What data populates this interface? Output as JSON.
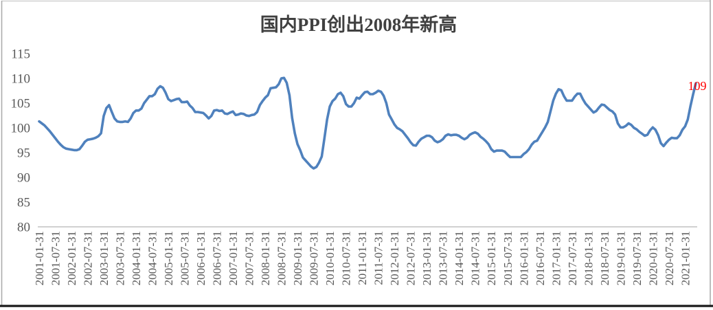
{
  "title": {
    "text": "国内PPI创出2008年新高"
  },
  "colors": {
    "series_line": "#4F81BD",
    "data_label": "#FF0000",
    "axis_line": "#C0C0C0",
    "tick_label": "#595959",
    "title_text": "#404040",
    "frame_border": "#ABABAB",
    "window_bottom_edge": "#1A1A1A",
    "background": "#FFFFFF"
  },
  "chart_data": {
    "type": "line",
    "title": "国内PPI创出2008年新高",
    "xlabel": "",
    "ylabel": "",
    "x_start": "2001-01",
    "x_end": "2021-05",
    "x_freq": "monthly",
    "ylim": [
      80,
      115
    ],
    "y_ticks": [
      80,
      85,
      90,
      95,
      100,
      105,
      110,
      115
    ],
    "grid": false,
    "legend": "none",
    "x_tick_labels": [
      "2001-01-31",
      "2001-07-31",
      "2002-01-31",
      "2002-07-31",
      "2003-01-31",
      "2003-07-31",
      "2004-01-31",
      "2004-07-31",
      "2005-01-31",
      "2005-07-31",
      "2006-01-31",
      "2006-07-31",
      "2007-01-31",
      "2007-07-31",
      "2008-01-31",
      "2008-07-31",
      "2009-01-31",
      "2009-07-31",
      "2010-01-31",
      "2010-07-31",
      "2011-01-31",
      "2011-07-31",
      "2012-01-31",
      "2012-07-31",
      "2013-01-31",
      "2013-07-31",
      "2014-01-31",
      "2014-07-31",
      "2015-01-31",
      "2015-07-31",
      "2016-01-31",
      "2016-07-31",
      "2017-01-31",
      "2017-07-31",
      "2018-01-31",
      "2018-07-31",
      "2019-01-31",
      "2019-07-31",
      "2020-01-31",
      "2020-07-31",
      "2021-01-31"
    ],
    "x_tick_every_n_months": 6,
    "values": [
      101.3,
      100.9,
      100.5,
      99.9,
      99.3,
      98.6,
      97.9,
      97.2,
      96.6,
      96.1,
      95.8,
      95.7,
      95.6,
      95.5,
      95.5,
      95.7,
      96.4,
      97.2,
      97.6,
      97.7,
      97.8,
      98.0,
      98.3,
      98.9,
      102.4,
      104.0,
      104.6,
      103.2,
      101.9,
      101.3,
      101.2,
      101.2,
      101.3,
      101.2,
      101.9,
      103.0,
      103.5,
      103.5,
      103.9,
      105.0,
      105.7,
      106.4,
      106.4,
      106.8,
      107.9,
      108.4,
      108.1,
      107.1,
      105.8,
      105.4,
      105.6,
      105.8,
      105.9,
      105.2,
      105.2,
      105.3,
      104.5,
      104.0,
      103.2,
      103.2,
      103.1,
      103.0,
      102.5,
      101.9,
      102.4,
      103.5,
      103.6,
      103.4,
      103.5,
      102.9,
      102.8,
      103.1,
      103.3,
      102.6,
      102.7,
      102.9,
      102.8,
      102.5,
      102.4,
      102.6,
      102.7,
      103.2,
      104.6,
      105.4,
      106.1,
      106.6,
      108.0,
      108.1,
      108.2,
      108.8,
      110.0,
      110.1,
      109.1,
      106.6,
      102.0,
      98.9,
      96.7,
      95.5,
      94.0,
      93.4,
      92.8,
      92.2,
      91.8,
      92.1,
      93.0,
      94.2,
      97.9,
      101.7,
      104.3,
      105.4,
      105.9,
      106.8,
      107.1,
      106.4,
      104.8,
      104.3,
      104.3,
      105.0,
      106.1,
      105.9,
      106.6,
      107.2,
      107.3,
      106.8,
      106.8,
      107.1,
      107.5,
      107.3,
      106.5,
      105.0,
      102.7,
      101.7,
      100.7,
      100.0,
      99.7,
      99.3,
      98.6,
      97.9,
      97.1,
      96.5,
      96.4,
      97.2,
      97.8,
      98.1,
      98.4,
      98.4,
      98.1,
      97.4,
      97.1,
      97.3,
      97.7,
      98.4,
      98.7,
      98.5,
      98.6,
      98.6,
      98.4,
      98.0,
      97.7,
      98.0,
      98.6,
      98.9,
      99.1,
      98.8,
      98.2,
      97.8,
      97.3,
      96.7,
      95.7,
      95.2,
      95.4,
      95.4,
      95.4,
      95.2,
      94.6,
      94.1,
      94.1,
      94.1,
      94.1,
      94.1,
      94.7,
      95.1,
      95.7,
      96.6,
      97.2,
      97.4,
      98.3,
      99.2,
      100.1,
      101.2,
      103.3,
      105.5,
      106.9,
      107.8,
      107.6,
      106.4,
      105.5,
      105.5,
      105.5,
      106.3,
      106.9,
      106.9,
      105.8,
      104.9,
      104.3,
      103.7,
      103.1,
      103.4,
      104.1,
      104.7,
      104.6,
      104.1,
      103.6,
      103.3,
      102.7,
      100.9,
      100.1,
      100.1,
      100.4,
      100.9,
      100.6,
      100.0,
      99.7,
      99.2,
      98.8,
      98.4,
      98.6,
      99.5,
      100.1,
      99.6,
      98.5,
      96.9,
      96.3,
      97.0,
      97.6,
      98.0,
      97.9,
      97.9,
      98.5,
      99.6,
      100.3,
      101.7,
      104.4,
      106.8,
      109.0
    ],
    "last_point_label": {
      "text": "109",
      "value": 109,
      "color": "#FF0000"
    }
  }
}
